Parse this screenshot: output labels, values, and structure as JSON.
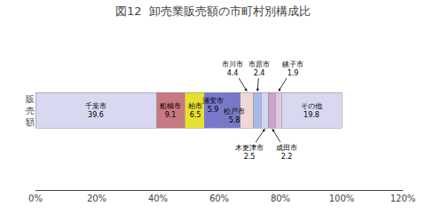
{
  "chart_data": {
    "type": "bar",
    "orientation": "horizontal",
    "stacked": true,
    "title": "図12  卸売業販売額の市町村別構成比",
    "categories": [
      "販\n売\n額"
    ],
    "series": [
      {
        "name": "千葉市",
        "color": "#d8d8f0",
        "values": [
          39.6
        ],
        "value_labels": [
          "千葉市\n39.6"
        ]
      },
      {
        "name": "船橋市",
        "color": "#c87880",
        "values": [
          9.1
        ],
        "value_labels": [
          "船橋市\n9.1"
        ]
      },
      {
        "name": "柏市",
        "color": "#e8e030",
        "values": [
          6.5
        ],
        "value_labels": [
          "柏市\n6.5"
        ]
      },
      {
        "name": "浦安市",
        "color": "#7878d0",
        "values": [
          5.9
        ],
        "value_labels": [
          "浦安市\n5.9"
        ]
      },
      {
        "name": "松戸市",
        "color": "#7878c8",
        "values": [
          5.8
        ],
        "value_labels": [
          "松戸市\n5.8"
        ]
      },
      {
        "name": "市川市",
        "color": "#f0d8d8",
        "values": [
          4.4
        ],
        "value_labels": [
          "市川市\n4.4"
        ]
      },
      {
        "name": "市原市",
        "color": "#a8b8e8",
        "values": [
          2.4
        ],
        "value_labels": [
          "市原市\n2.4"
        ]
      },
      {
        "name": "木更津市",
        "color": "#d0d8f0",
        "values": [
          2.5
        ],
        "value_labels": [
          "木更津市\n2.5"
        ]
      },
      {
        "name": "成田市",
        "color": "#d0a0c8",
        "values": [
          2.2
        ],
        "value_labels": [
          "成田市\n2.2"
        ]
      },
      {
        "name": "銚子市",
        "color": "#e0c8e0",
        "values": [
          1.9
        ],
        "value_labels": [
          "銚子市\n1.9"
        ]
      },
      {
        "name": "その他",
        "color": "#d8d8f0",
        "values": [
          19.8
        ],
        "value_labels": [
          "その他\n19.8"
        ]
      }
    ],
    "data_labels": true,
    "xlim": [
      0,
      120
    ],
    "xticks": [
      {
        "value": 0,
        "label": "0%"
      },
      {
        "value": 20,
        "label": "20%"
      },
      {
        "value": 40,
        "label": "40%"
      },
      {
        "value": 60,
        "label": "60%"
      },
      {
        "value": 80,
        "label": "80%"
      },
      {
        "value": 100,
        "label": "100%"
      },
      {
        "value": 120,
        "label": "120%"
      }
    ],
    "grid": false
  }
}
